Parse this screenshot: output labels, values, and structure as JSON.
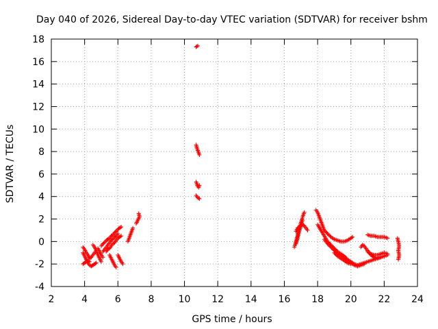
{
  "chart_data": {
    "type": "scatter",
    "title": "Day 040 of 2026, Sidereal Day-to-day VTEC variation (SDTVAR) for receiver bshm",
    "xlabel": "GPS time / hours",
    "ylabel": "SDTVAR / TECUs",
    "xlim": [
      2,
      24
    ],
    "ylim": [
      -4,
      18
    ],
    "xticks": [
      "2",
      "4",
      "6",
      "8",
      "10",
      "12",
      "14",
      "16",
      "18",
      "20",
      "22",
      "24"
    ],
    "yticks": [
      "-4",
      "-2",
      "0",
      "2",
      "4",
      "6",
      "8",
      "10",
      "12",
      "14",
      "16",
      "18"
    ],
    "grid": true,
    "marker": "+",
    "marker_color": "#ff0000",
    "series": [
      {
        "name": "SDTVAR",
        "tracks": [
          [
            [
              3.9,
              -0.5
            ],
            [
              4.0,
              -0.7
            ],
            [
              4.1,
              -1.0
            ],
            [
              4.2,
              -1.2
            ],
            [
              4.3,
              -1.5
            ],
            [
              4.4,
              -1.4
            ],
            [
              4.5,
              -1.2
            ],
            [
              4.6,
              -1.0
            ],
            [
              4.7,
              -0.8
            ]
          ],
          [
            [
              3.9,
              -1.0
            ],
            [
              4.0,
              -1.3
            ],
            [
              4.1,
              -1.6
            ],
            [
              4.2,
              -1.9
            ],
            [
              4.3,
              -2.1
            ],
            [
              4.4,
              -2.2
            ],
            [
              4.5,
              -2.1
            ],
            [
              4.6,
              -2.0
            ],
            [
              4.7,
              -1.9
            ]
          ],
          [
            [
              3.9,
              -2.0
            ],
            [
              4.0,
              -1.9
            ],
            [
              4.1,
              -1.8
            ],
            [
              4.2,
              -1.7
            ],
            [
              4.3,
              -1.8
            ]
          ],
          [
            [
              4.5,
              -0.3
            ],
            [
              4.6,
              -0.5
            ],
            [
              4.7,
              -0.8
            ],
            [
              4.8,
              -1.2
            ],
            [
              4.9,
              -1.5
            ],
            [
              5.0,
              -1.8
            ]
          ],
          [
            [
              4.8,
              -0.6
            ],
            [
              4.9,
              -0.9
            ],
            [
              5.0,
              -1.2
            ],
            [
              5.1,
              -1.4
            ]
          ],
          [
            [
              5.0,
              -0.4
            ],
            [
              5.1,
              -0.2
            ],
            [
              5.2,
              -0.1
            ],
            [
              5.3,
              0.1
            ],
            [
              5.4,
              0.2
            ],
            [
              5.5,
              0.3
            ],
            [
              5.6,
              0.5
            ],
            [
              5.7,
              0.6
            ],
            [
              5.8,
              0.8
            ],
            [
              5.9,
              0.9
            ],
            [
              6.0,
              1.1
            ],
            [
              6.1,
              1.2
            ],
            [
              6.2,
              1.3
            ]
          ],
          [
            [
              5.1,
              -0.9
            ],
            [
              5.2,
              -0.7
            ],
            [
              5.3,
              -0.5
            ],
            [
              5.4,
              -0.3
            ],
            [
              5.5,
              -0.1
            ],
            [
              5.6,
              0.1
            ],
            [
              5.7,
              0.2
            ],
            [
              5.8,
              0.4
            ],
            [
              5.9,
              0.5
            ],
            [
              6.0,
              0.7
            ]
          ],
          [
            [
              5.3,
              -0.9
            ],
            [
              5.4,
              -0.7
            ],
            [
              5.5,
              -0.6
            ],
            [
              5.6,
              -0.4
            ],
            [
              5.7,
              -0.2
            ],
            [
              5.8,
              -0.1
            ],
            [
              5.9,
              0.1
            ],
            [
              6.0,
              0.3
            ],
            [
              6.1,
              0.4
            ],
            [
              6.2,
              0.5
            ]
          ],
          [
            [
              5.5,
              -1.2
            ],
            [
              5.6,
              -1.5
            ],
            [
              5.7,
              -1.8
            ],
            [
              5.8,
              -2.1
            ],
            [
              5.9,
              -2.3
            ]
          ],
          [
            [
              6.0,
              -1.2
            ],
            [
              6.1,
              -1.5
            ],
            [
              6.2,
              -1.8
            ],
            [
              6.3,
              -2.0
            ]
          ],
          [
            [
              6.6,
              0.0
            ],
            [
              6.7,
              0.4
            ],
            [
              6.8,
              0.8
            ],
            [
              6.9,
              1.2
            ]
          ],
          [
            [
              7.1,
              1.6
            ],
            [
              7.2,
              1.9
            ],
            [
              7.3,
              2.2
            ],
            [
              7.25,
              2.5
            ]
          ],
          [
            [
              10.7,
              17.3
            ],
            [
              10.8,
              17.4
            ]
          ],
          [
            [
              10.7,
              8.6
            ],
            [
              10.75,
              8.3
            ],
            [
              10.8,
              8.1
            ],
            [
              10.85,
              7.9
            ],
            [
              10.9,
              7.7
            ]
          ],
          [
            [
              10.7,
              5.3
            ],
            [
              10.75,
              5.1
            ],
            [
              10.8,
              4.9
            ],
            [
              10.85,
              4.8
            ],
            [
              10.9,
              5.0
            ]
          ],
          [
            [
              10.7,
              4.1
            ],
            [
              10.8,
              3.9
            ],
            [
              10.9,
              3.8
            ]
          ],
          [
            [
              16.6,
              -0.5
            ],
            [
              16.7,
              0.0
            ],
            [
              16.8,
              0.6
            ],
            [
              16.9,
              1.2
            ],
            [
              17.0,
              1.7
            ],
            [
              17.1,
              2.2
            ],
            [
              17.2,
              2.6
            ]
          ],
          [
            [
              16.7,
              -0.2
            ],
            [
              16.8,
              0.3
            ],
            [
              16.9,
              0.9
            ],
            [
              17.0,
              1.4
            ],
            [
              17.1,
              1.9
            ]
          ],
          [
            [
              16.7,
              0.9
            ],
            [
              16.8,
              1.2
            ],
            [
              16.9,
              1.3
            ],
            [
              17.0,
              1.4
            ],
            [
              17.1,
              1.5
            ],
            [
              17.2,
              1.4
            ],
            [
              17.3,
              1.2
            ],
            [
              17.4,
              1.0
            ]
          ],
          [
            [
              17.9,
              2.8
            ],
            [
              18.0,
              2.6
            ],
            [
              18.1,
              2.2
            ],
            [
              18.2,
              1.8
            ],
            [
              18.3,
              1.4
            ],
            [
              18.4,
              1.0
            ],
            [
              18.6,
              0.7
            ],
            [
              18.8,
              0.4
            ],
            [
              19.0,
              0.2
            ],
            [
              19.2,
              0.1
            ],
            [
              19.4,
              0.0
            ],
            [
              19.6,
              0.0
            ],
            [
              19.8,
              0.1
            ],
            [
              20.0,
              0.3
            ],
            [
              20.1,
              0.4
            ]
          ],
          [
            [
              18.0,
              1.5
            ],
            [
              18.2,
              1.0
            ],
            [
              18.4,
              0.5
            ],
            [
              18.6,
              0.0
            ],
            [
              18.8,
              -0.3
            ],
            [
              19.0,
              -0.6
            ],
            [
              19.2,
              -0.9
            ],
            [
              19.4,
              -1.1
            ],
            [
              19.6,
              -1.3
            ],
            [
              19.8,
              -1.6
            ],
            [
              20.0,
              -1.8
            ],
            [
              20.2,
              -2.0
            ],
            [
              20.4,
              -2.1
            ],
            [
              20.6,
              -2.0
            ],
            [
              20.8,
              -1.9
            ],
            [
              21.0,
              -1.8
            ],
            [
              21.2,
              -1.7
            ],
            [
              21.4,
              -1.6
            ],
            [
              21.6,
              -1.5
            ],
            [
              21.8,
              -1.4
            ]
          ],
          [
            [
              18.4,
              0.2
            ],
            [
              18.6,
              -0.2
            ],
            [
              18.8,
              -0.5
            ],
            [
              19.0,
              -0.8
            ],
            [
              19.2,
              -1.1
            ],
            [
              19.4,
              -1.3
            ],
            [
              19.6,
              -1.5
            ],
            [
              19.8,
              -1.7
            ],
            [
              20.0,
              -1.9
            ],
            [
              20.2,
              -2.1
            ],
            [
              20.4,
              -2.2
            ],
            [
              20.6,
              -2.1
            ],
            [
              20.8,
              -2.0
            ]
          ],
          [
            [
              19.0,
              -1.0
            ],
            [
              19.2,
              -1.3
            ],
            [
              19.4,
              -1.5
            ],
            [
              19.6,
              -1.7
            ],
            [
              19.8,
              -1.9
            ],
            [
              20.0,
              -2.0
            ]
          ],
          [
            [
              20.6,
              -0.5
            ],
            [
              20.7,
              -0.3
            ],
            [
              20.8,
              -0.4
            ],
            [
              20.9,
              -0.6
            ],
            [
              21.0,
              -0.8
            ],
            [
              21.1,
              -1.0
            ],
            [
              21.2,
              -1.2
            ],
            [
              21.3,
              -1.3
            ],
            [
              21.4,
              -1.4
            ],
            [
              21.6,
              -1.5
            ],
            [
              21.8,
              -1.4
            ],
            [
              22.0,
              -1.3
            ],
            [
              22.2,
              -1.2
            ]
          ],
          [
            [
              21.0,
              -0.9
            ],
            [
              21.2,
              -1.1
            ],
            [
              21.4,
              -1.2
            ],
            [
              21.6,
              -1.2
            ],
            [
              21.8,
              -1.1
            ],
            [
              22.0,
              -1.0
            ],
            [
              22.2,
              -1.1
            ]
          ],
          [
            [
              21.0,
              0.6
            ],
            [
              21.2,
              0.5
            ],
            [
              21.4,
              0.5
            ],
            [
              21.6,
              0.4
            ],
            [
              21.8,
              0.4
            ],
            [
              22.0,
              0.4
            ],
            [
              22.2,
              0.3
            ]
          ],
          [
            [
              22.8,
              0.3
            ],
            [
              22.85,
              0.0
            ],
            [
              22.9,
              -0.4
            ],
            [
              22.85,
              -0.8
            ],
            [
              22.9,
              -1.2
            ],
            [
              22.85,
              -1.6
            ]
          ]
        ]
      }
    ]
  }
}
